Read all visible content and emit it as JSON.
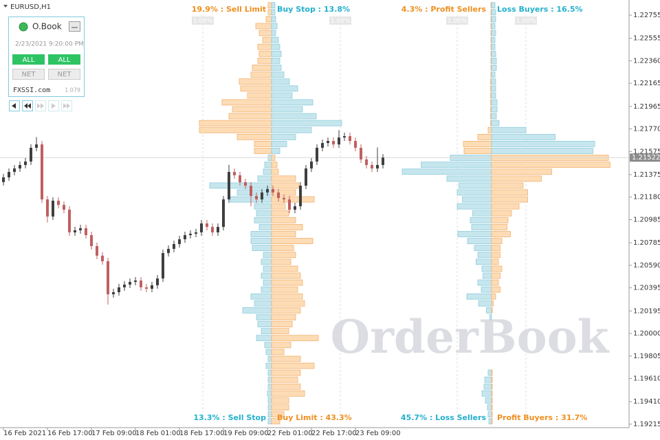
{
  "chart_data": {
    "type": "candlestick",
    "symbol": "EURUSD,H1",
    "grid": false,
    "ylim": [
      1.19185,
      1.22874
    ],
    "yticks": [
      1.22755,
      1.22555,
      {
        "value": 1.2236,
        "label": "1.22360"
      },
      1.22165,
      1.21965,
      {
        "value": 1.2177,
        "label": "1.21770"
      },
      1.21575,
      1.21375,
      {
        "value": 1.2118,
        "label": "1.21180"
      },
      1.20985,
      1.20785,
      {
        "value": 1.2059,
        "label": "1.20590"
      },
      1.20395,
      1.20195,
      {
        "value": 1.2,
        "label": "1.20000"
      },
      1.19805,
      {
        "value": 1.1961,
        "label": "1.19610"
      },
      {
        "value": 1.1941,
        "label": "1.19410"
      },
      1.19215
    ],
    "current_price": 1.21522,
    "up_color": "#3f3f3f",
    "down_color": "#c0605f",
    "categories": [
      "16 Feb 2021",
      null,
      null,
      null,
      null,
      null,
      null,
      null,
      "16 Feb 17:00",
      null,
      null,
      null,
      null,
      null,
      null,
      null,
      "17 Feb 09:00",
      null,
      null,
      null,
      null,
      null,
      null,
      null,
      "18 Feb 01:00",
      null,
      null,
      null,
      null,
      null,
      null,
      null,
      "18 Feb 17:00",
      null,
      null,
      null,
      null,
      null,
      null,
      null,
      "19 Feb 09:00",
      null,
      null,
      null,
      null,
      null,
      null,
      null,
      "22 Feb 01:00",
      null,
      null,
      null,
      null,
      null,
      null,
      null,
      "22 Feb 17:00",
      null,
      null,
      null,
      null,
      null,
      null,
      null,
      "23 Feb 09:00",
      null,
      null,
      null,
      null,
      null
    ],
    "open": [
      1.2131,
      1.21351,
      1.21398,
      1.21428,
      1.21458,
      1.21488,
      1.21607,
      1.21636,
      1.2116,
      1.21012,
      1.21149,
      1.21113,
      1.21071,
      1.20875,
      1.20893,
      1.20911,
      1.20851,
      1.20756,
      1.20673,
      1.20625,
      1.20339,
      1.20357,
      1.20399,
      1.20423,
      1.20446,
      1.20458,
      1.20399,
      1.20387,
      1.20417,
      1.20476,
      1.20696,
      1.20732,
      1.20774,
      1.20815,
      1.20851,
      1.20863,
      1.20875,
      1.20952,
      1.20922,
      1.20875,
      1.20922,
      1.2116,
      1.21398,
      1.21369,
      1.21309,
      1.21279,
      1.2119,
      1.2116,
      1.2122,
      1.2125,
      1.2122,
      1.21172,
      1.2116,
      1.21071,
      1.21101,
      1.21279,
      1.21428,
      1.21488,
      1.21607,
      1.21648,
      1.21666,
      1.21636,
      1.21696,
      1.21708,
      1.21666,
      1.21607,
      1.21506,
      1.21458,
      1.21428,
      1.21458
    ],
    "high": [
      1.21381,
      1.21428,
      1.21458,
      1.21488,
      1.21518,
      1.21637,
      1.217,
      1.21666,
      1.2119,
      1.21179,
      1.21179,
      1.21143,
      1.21101,
      1.20923,
      1.20941,
      1.20941,
      1.20881,
      1.20786,
      1.20703,
      1.20655,
      1.20387,
      1.20429,
      1.20453,
      1.20476,
      1.20488,
      1.20488,
      1.20429,
      1.20447,
      1.20506,
      1.20726,
      1.20762,
      1.20804,
      1.20845,
      1.20881,
      1.20893,
      1.20905,
      1.20982,
      1.20982,
      1.20952,
      1.20952,
      1.2119,
      1.2146,
      1.21428,
      1.21399,
      1.21339,
      1.21309,
      1.2122,
      1.2125,
      1.2128,
      1.2128,
      1.2125,
      1.21202,
      1.2119,
      1.21131,
      1.21309,
      1.21458,
      1.21518,
      1.21637,
      1.21678,
      1.21696,
      1.21696,
      1.2176,
      1.21738,
      1.21738,
      1.21696,
      1.21637,
      1.21536,
      1.21488,
      1.2161,
      1.21552
    ],
    "low": [
      1.2128,
      1.21321,
      1.21368,
      1.21398,
      1.21428,
      1.21458,
      1.21577,
      1.2113,
      1.2096,
      1.20982,
      1.21083,
      1.21041,
      1.20845,
      1.20845,
      1.20863,
      1.20821,
      1.20726,
      1.20643,
      1.20595,
      1.2025,
      1.20309,
      1.20327,
      1.20369,
      1.20393,
      1.20416,
      1.20369,
      1.20357,
      1.20357,
      1.20387,
      1.20446,
      1.20666,
      1.20702,
      1.20744,
      1.20785,
      1.20821,
      1.20833,
      1.20845,
      1.20892,
      1.20845,
      1.20845,
      1.20892,
      1.2113,
      1.21339,
      1.21279,
      1.21249,
      1.211,
      1.2113,
      1.2113,
      1.2119,
      1.2119,
      1.21142,
      1.2113,
      1.21041,
      1.21041,
      1.21071,
      1.21249,
      1.21398,
      1.21458,
      1.21577,
      1.21618,
      1.21606,
      1.21606,
      1.21666,
      1.21636,
      1.21577,
      1.21476,
      1.21428,
      1.21398,
      1.21398,
      1.21428
    ],
    "close": [
      1.21351,
      1.21398,
      1.21428,
      1.21458,
      1.21488,
      1.21607,
      1.21636,
      1.2116,
      1.21012,
      1.21149,
      1.21113,
      1.21071,
      1.20875,
      1.20893,
      1.20911,
      1.20851,
      1.20756,
      1.20673,
      1.20625,
      1.20339,
      1.20357,
      1.20399,
      1.20423,
      1.20446,
      1.20458,
      1.20399,
      1.20387,
      1.20417,
      1.20476,
      1.20696,
      1.20732,
      1.20774,
      1.20815,
      1.20851,
      1.20863,
      1.20875,
      1.20952,
      1.20922,
      1.20875,
      1.20922,
      1.2116,
      1.21398,
      1.21369,
      1.21309,
      1.21279,
      1.2119,
      1.2116,
      1.2122,
      1.2125,
      1.2122,
      1.21172,
      1.2116,
      1.21071,
      1.21101,
      1.21279,
      1.21428,
      1.21488,
      1.21607,
      1.21648,
      1.21666,
      1.21636,
      1.21696,
      1.21708,
      1.21666,
      1.21607,
      1.21506,
      1.21458,
      1.21428,
      1.21458,
      1.21522
    ],
    "palette": {
      "orange": {
        "fill": "#fddcb5",
        "stroke": "#f2b06e",
        "text": "#ef8f1f"
      },
      "blue": {
        "fill": "#c6e6ee",
        "stroke": "#8ecbdb",
        "text": "#23b0cd"
      }
    },
    "levels": [
      1.2284,
      1.2278,
      1.2272,
      1.2266,
      1.226,
      1.2254,
      1.2248,
      1.2242,
      1.2236,
      1.223,
      1.2224,
      1.2218,
      1.2212,
      1.2206,
      1.22,
      1.2194,
      1.2188,
      1.2182,
      1.2176,
      1.217,
      1.2164,
      1.2158,
      1.2152,
      1.2146,
      1.214,
      1.2134,
      1.2128,
      1.2122,
      1.2116,
      1.211,
      1.2104,
      1.2098,
      1.2092,
      1.2086,
      1.208,
      1.2074,
      1.2068,
      1.2062,
      1.2056,
      1.205,
      1.2044,
      1.2038,
      1.2032,
      1.2026,
      1.202,
      1.2014,
      1.2008,
      1.2002,
      1.1996,
      1.199,
      1.1984,
      1.1978,
      1.1972,
      1.1966,
      1.196,
      1.1954,
      1.1948,
      1.1942,
      1.1936,
      1.193,
      1.1924
    ],
    "orderbook": [
      {
        "xlim": [
          0,
          2
        ],
        "left": {
          "above": "orange",
          "below": "blue",
          "label_above": "19.9% : Sell Limit",
          "label_below": "13.3% : Sell Stop",
          "xticks": [
            {
              "value": 1,
              "label": "1.00%"
            }
          ],
          "values": [
            0.05,
            0.05,
            0.08,
            0.23,
            0.18,
            0.13,
            0.2,
            0.18,
            0.2,
            0.28,
            0.3,
            0.47,
            0.45,
            0.35,
            0.72,
            0.57,
            0.62,
            1.05,
            1.05,
            0.5,
            0.25,
            0.25,
            0.05,
            0.1,
            0.12,
            0.2,
            0.9,
            0.5,
            0.6,
            0.25,
            0.22,
            0.25,
            0.18,
            0.3,
            0.3,
            0.28,
            0.12,
            0.15,
            0.12,
            0.15,
            0.12,
            0.15,
            0.3,
            0.25,
            0.42,
            0.22,
            0.2,
            0.15,
            0.22,
            0.1,
            0.08,
            0.05,
            0.08,
            0.05,
            0.05,
            0.05,
            0.06,
            0.05,
            0.05,
            0.05,
            0.05
          ]
        },
        "right": {
          "above": "blue",
          "below": "orange",
          "label_above": "Buy Stop : 13.8%",
          "label_below": "Buy Limit : 43.3%",
          "xticks": [
            {
              "value": 1,
              "label": "1.00%"
            }
          ],
          "values": [
            0.05,
            0.05,
            0.06,
            0.08,
            0.06,
            0.1,
            0.12,
            0.14,
            0.12,
            0.14,
            0.18,
            0.26,
            0.38,
            0.3,
            0.6,
            0.45,
            0.65,
            1.02,
            0.58,
            0.35,
            0.22,
            0.12,
            0.05,
            0.08,
            0.1,
            0.35,
            0.4,
            0.35,
            0.62,
            0.2,
            0.25,
            0.35,
            0.45,
            0.35,
            0.6,
            0.32,
            0.35,
            0.28,
            0.38,
            0.42,
            0.45,
            0.38,
            0.45,
            0.48,
            0.42,
            0.35,
            0.3,
            0.25,
            0.68,
            0.28,
            0.18,
            0.42,
            0.62,
            0.42,
            0.38,
            0.42,
            0.48,
            0.25,
            0.25,
            0.18,
            0.12
          ]
        }
      },
      {
        "xlim": [
          0,
          4
        ],
        "left": {
          "above": "orange",
          "below": "blue",
          "label_above": "4.3% : Profit Sellers",
          "label_below": "45.7% : Loss Sellers",
          "xticks": [
            {
              "value": 1,
              "label": "1.00%"
            }
          ],
          "values": [
            0.02,
            0.02,
            0.02,
            0.02,
            0.02,
            0.02,
            0.02,
            0.02,
            0.02,
            0.02,
            0.02,
            0.03,
            0.03,
            0.03,
            0.03,
            0.03,
            0.03,
            0.03,
            0.1,
            0.4,
            0.82,
            0.8,
            1.2,
            2.05,
            2.6,
            1.3,
            0.95,
            1.0,
            0.85,
            1.0,
            0.55,
            0.62,
            0.58,
            0.98,
            0.7,
            0.5,
            0.4,
            0.45,
            0.28,
            0.25,
            0.4,
            0.3,
            0.72,
            0.38,
            0.15,
            0.05,
            0,
            0,
            0,
            0,
            0,
            0,
            0,
            0.1,
            0.2,
            0.22,
            0.28,
            0.18,
            0.12,
            0.1,
            0.08
          ]
        },
        "right": {
          "above": "blue",
          "below": "orange",
          "label_above": "Loss Buyers : 16.5%",
          "label_below": "Profit Buyers : 31.7%",
          "xticks": [
            {
              "value": 1,
              "label": "1.00%"
            }
          ],
          "values": [
            0.1,
            0.12,
            0.12,
            0.1,
            0.12,
            0.1,
            0.1,
            0.12,
            0.14,
            0.14,
            0.1,
            0.12,
            0.12,
            0.12,
            0.16,
            0.16,
            0.14,
            0.22,
            1.0,
            1.85,
            3.0,
            2.95,
            3.4,
            3.45,
            1.75,
            1.45,
            0.92,
            1.05,
            1.05,
            0.8,
            0.58,
            0.48,
            0.45,
            0.55,
            0.3,
            0.25,
            0.25,
            0.2,
            0.3,
            0.25,
            0.2,
            0.25,
            0.12,
            0.05,
            0.02,
            0,
            0,
            0,
            0,
            0,
            0,
            0,
            0,
            0.02,
            0.02,
            0.02,
            0.02,
            0.02,
            0.02,
            0.02,
            0.02
          ]
        }
      }
    ]
  },
  "widget": {
    "title": "O.Book",
    "time": "2/23/2021 9:20:00 PM",
    "buttons": [
      "ALL",
      "ALL",
      "NET",
      "NET"
    ],
    "site": "FXSSI.com",
    "version": "1.079"
  },
  "watermark": "OrderBook"
}
